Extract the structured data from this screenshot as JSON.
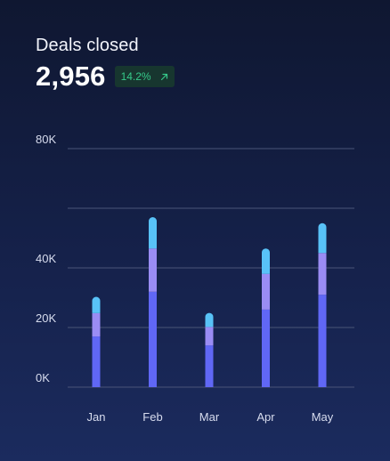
{
  "card": {
    "title": "Deals closed",
    "value": "2,956",
    "change": "14.2%",
    "change_icon": "arrow-up-right-icon",
    "change_color": "#36c98a"
  },
  "colors": {
    "segment_bottom": "#6067f5",
    "segment_middle": "#9a8cf4",
    "segment_top": "#58c2f7",
    "gridline": "#4a5578"
  },
  "chart_data": {
    "type": "bar",
    "stacked": true,
    "categories": [
      "Jan",
      "Feb",
      "Mar",
      "Apr",
      "May"
    ],
    "series": [
      {
        "values": [
          17000,
          32000,
          14000,
          26000,
          31000
        ]
      },
      {
        "values": [
          7800,
          14500,
          6200,
          12000,
          14000
        ]
      },
      {
        "values": [
          5500,
          10500,
          4700,
          8500,
          10000
        ]
      }
    ],
    "y_ticks": [
      0,
      20000,
      40000,
      60000,
      80000
    ],
    "y_tick_labels": [
      "0K",
      "20K",
      "40K",
      "",
      "80K"
    ],
    "ylim": [
      0,
      60000
    ],
    "grid": true
  }
}
